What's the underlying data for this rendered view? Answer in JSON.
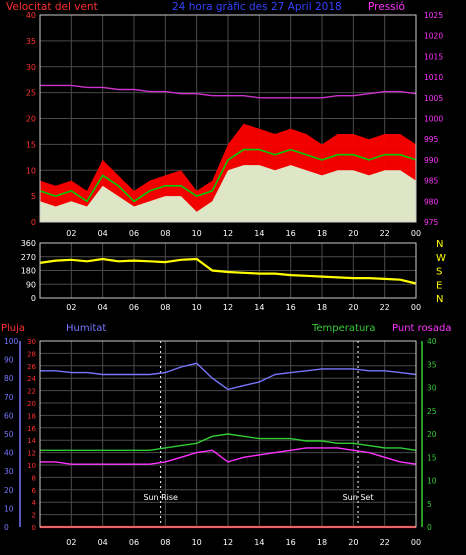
{
  "header": {
    "left_label": "Velocitat del vent",
    "title": "24 hora gràfic des 27 April 2018",
    "right_label": "Pressió"
  },
  "colors": {
    "background": "#000000",
    "grid": "#4a4a4a",
    "wind_gust": "#ff0000",
    "wind_avg": "#00cc00",
    "wind_dir": "#ffff00",
    "pressure": "#cc33cc",
    "rain": "#ff0000",
    "humidity": "#7777ff",
    "temperature": "#33cc33",
    "dewpoint": "#ff33ff",
    "wind_speed_fill": "#ddffdd",
    "sun_marker": "#ffffff"
  },
  "chart_data": [
    {
      "type": "line",
      "id": "wind-pressure",
      "title": "24 hora gràfic des 27 April 2018",
      "ylabel_left": "Velocitat del vent",
      "ylabel_right": "Pressió",
      "ylim_left": [
        0,
        40
      ],
      "yticks_left": [
        "0",
        "5",
        "10",
        "15",
        "20",
        "25",
        "30",
        "35",
        "40"
      ],
      "ylim_right": [
        975,
        1025
      ],
      "yticks_right": [
        "975",
        "980",
        "985",
        "990",
        "995",
        "1000",
        "1005",
        "1010",
        "1015",
        "1020",
        "1025"
      ],
      "xticks": [
        "02",
        "04",
        "06",
        "08",
        "10",
        "12",
        "14",
        "16",
        "18",
        "20",
        "22",
        "00"
      ],
      "grid": true,
      "series": [
        {
          "name": "Velocitat del vent",
          "values": [
            8,
            7,
            8,
            6,
            12,
            9,
            6,
            8,
            9,
            10,
            6,
            8,
            15,
            19,
            18,
            17,
            18,
            17,
            15,
            17,
            17,
            16,
            17,
            17,
            15
          ]
        },
        {
          "name": "Mitjana",
          "values": [
            6,
            5,
            6,
            4,
            9,
            7,
            4,
            6,
            7,
            7,
            5,
            6,
            12,
            14,
            14,
            13,
            14,
            13,
            12,
            13,
            13,
            12,
            13,
            13,
            12
          ]
        },
        {
          "name": "Ràfega",
          "values": [
            4,
            3,
            4,
            3,
            7,
            5,
            3,
            4,
            5,
            5,
            2,
            4,
            10,
            11,
            11,
            10,
            11,
            10,
            9,
            10,
            10,
            9,
            10,
            10,
            8
          ]
        },
        {
          "name": "Pressió",
          "values": [
            1008,
            1008,
            1008,
            1007.5,
            1007.5,
            1007,
            1007,
            1006.5,
            1006.5,
            1006,
            1006,
            1005.5,
            1005.5,
            1005.5,
            1005,
            1005,
            1005,
            1005,
            1005,
            1005.5,
            1005.5,
            1006,
            1006.5,
            1006.5,
            1006
          ]
        }
      ]
    },
    {
      "type": "line",
      "id": "wind-direction",
      "ylim": [
        0,
        360
      ],
      "yticks": [
        "0",
        "90",
        "180",
        "270",
        "360"
      ],
      "compass_labels": [
        "N",
        "W",
        "S",
        "E",
        "N"
      ],
      "xticks": [
        "02",
        "04",
        "06",
        "08",
        "10",
        "12",
        "14",
        "16",
        "18",
        "20",
        "22",
        "00"
      ],
      "grid": true,
      "series": [
        {
          "name": "Direcció",
          "values": [
            230,
            245,
            250,
            240,
            255,
            240,
            245,
            240,
            235,
            250,
            255,
            180,
            170,
            165,
            160,
            160,
            150,
            145,
            140,
            135,
            130,
            130,
            125,
            120,
            95
          ]
        }
      ]
    },
    {
      "type": "line",
      "id": "rain-hum-temp",
      "labels": {
        "rain": "Pluja",
        "humidity": "Humitat",
        "temperature": "Temperatura",
        "dewpoint": "Punt rosada"
      },
      "ylim_humidity": [
        0,
        100
      ],
      "yticks_humidity": [
        "0",
        "10",
        "20",
        "30",
        "40",
        "50",
        "60",
        "70",
        "80",
        "90",
        "100"
      ],
      "ylim_rain": [
        0,
        30
      ],
      "yticks_rain": [
        "0",
        "2",
        "4",
        "6",
        "8",
        "10",
        "12",
        "14",
        "16",
        "18",
        "20",
        "22",
        "24",
        "26",
        "28",
        "30"
      ],
      "ylim_temp": [
        0,
        40
      ],
      "yticks_temp": [
        "0",
        "5",
        "10",
        "15",
        "20",
        "25",
        "30",
        "35",
        "40"
      ],
      "xticks": [
        "02",
        "04",
        "06",
        "08",
        "10",
        "12",
        "14",
        "16",
        "18",
        "20",
        "22",
        "00"
      ],
      "grid": true,
      "markers": [
        {
          "label": "Sun Rise",
          "x": 7.7
        },
        {
          "label": "Sun Set",
          "x": 20.3
        }
      ],
      "series": [
        {
          "name": "Pluja",
          "values": [
            0,
            0,
            0,
            0,
            0,
            0,
            0,
            0,
            0,
            0,
            0,
            0,
            0,
            0,
            0,
            0,
            0,
            0,
            0,
            0,
            0,
            0,
            0,
            0,
            0
          ]
        },
        {
          "name": "Humitat",
          "values": [
            84,
            84,
            83,
            83,
            82,
            82,
            82,
            82,
            83,
            86,
            88,
            80,
            74,
            76,
            78,
            82,
            83,
            84,
            85,
            85,
            85,
            84,
            84,
            83,
            82
          ]
        },
        {
          "name": "Temperatura",
          "values": [
            16.5,
            16.5,
            16.5,
            16.5,
            16.5,
            16.5,
            16.5,
            16.5,
            17,
            17.5,
            18,
            19.5,
            20,
            19.5,
            19,
            19,
            19,
            18.5,
            18.5,
            18,
            18,
            17.5,
            17,
            17,
            16.5
          ]
        },
        {
          "name": "Punt rosada",
          "values": [
            14,
            14,
            13.5,
            13.5,
            13.5,
            13.5,
            13.5,
            13.5,
            14,
            15,
            16,
            16.5,
            14,
            15,
            15.5,
            16,
            16.5,
            17,
            17,
            17,
            16.5,
            16,
            15,
            14,
            13.5
          ]
        }
      ]
    }
  ]
}
